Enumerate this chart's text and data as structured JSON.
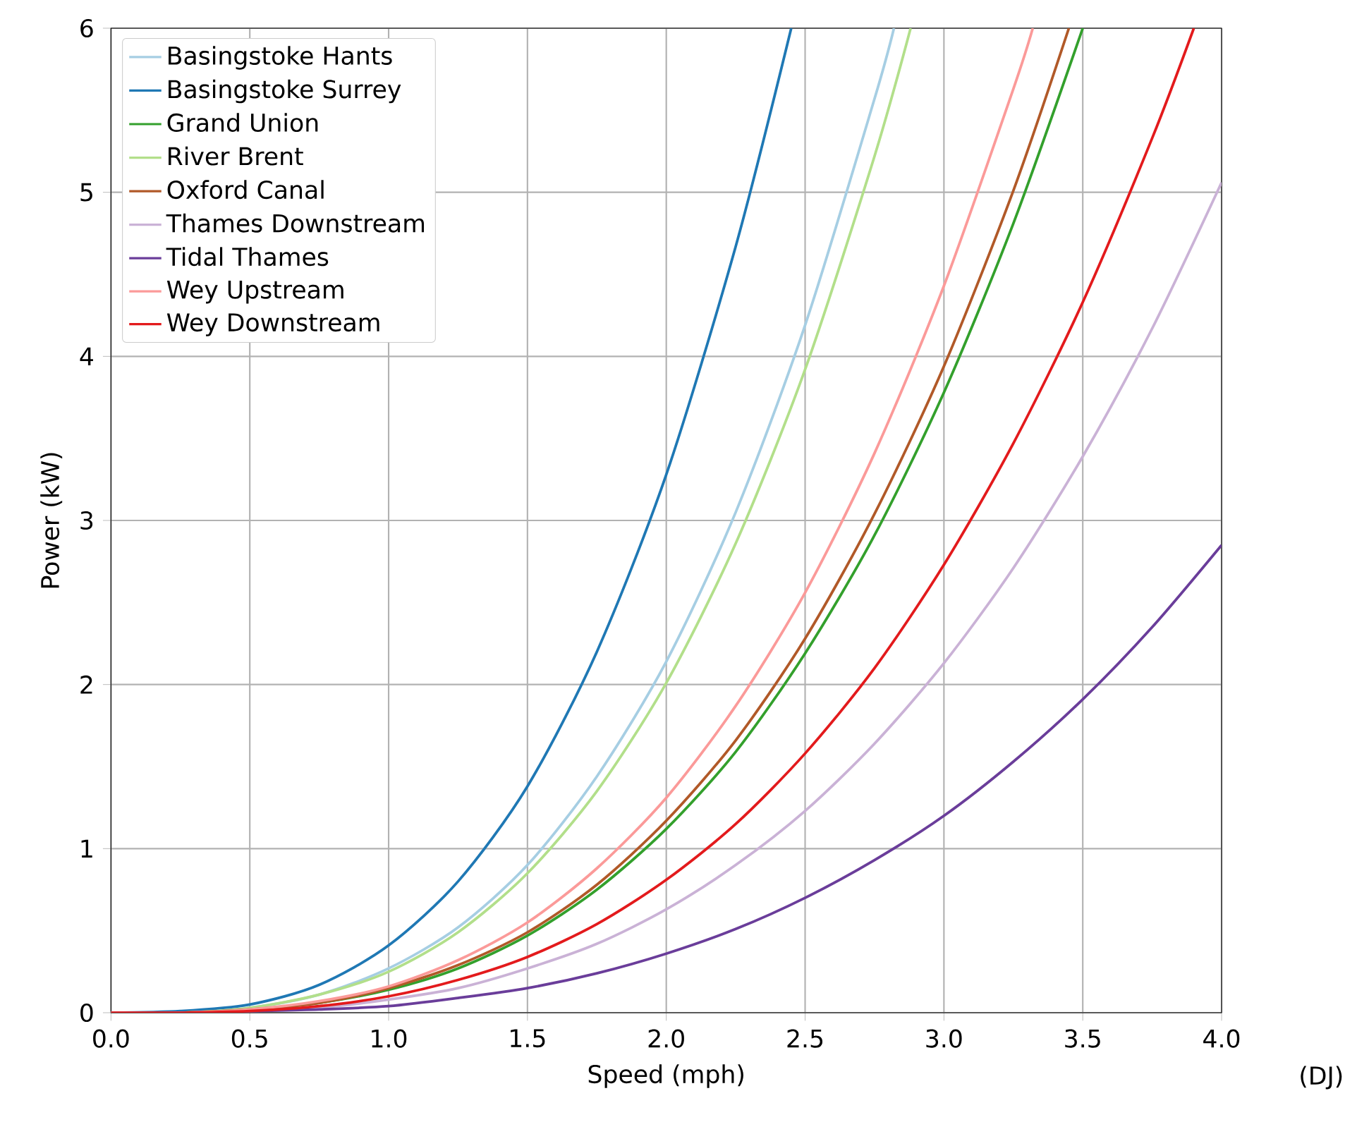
{
  "chart_data": {
    "type": "line",
    "xlabel": "Speed (mph)",
    "ylabel": "Power (kW)",
    "xlim": [
      0,
      4
    ],
    "ylim": [
      0,
      6
    ],
    "xticks": [
      {
        "value": 0,
        "label": "0.0"
      },
      {
        "value": 0.5,
        "label": "0.5"
      },
      {
        "value": 1,
        "label": "1.0"
      },
      {
        "value": 1.5,
        "label": "1.5"
      },
      {
        "value": 2,
        "label": "2.0"
      },
      {
        "value": 2.5,
        "label": "2.5"
      },
      {
        "value": 3,
        "label": "3.0"
      },
      {
        "value": 3.5,
        "label": "3.5"
      },
      {
        "value": 4,
        "label": "4.0"
      }
    ],
    "yticks": [
      0,
      1,
      2,
      3,
      4,
      5,
      6
    ],
    "grid": true,
    "legend": "top left",
    "line_style": "solid",
    "marker": "none",
    "annotations": [
      "(DJ)"
    ],
    "series": [
      {
        "name": "Basingstoke Hants",
        "color": "#a6cee3",
        "x": [
          0,
          0.25,
          0.5,
          0.75,
          1,
          1.25,
          1.5,
          1.75,
          2,
          2.25,
          2.5,
          2.75,
          2.82
        ],
        "values": [
          0,
          0,
          0.03,
          0.11,
          0.27,
          0.52,
          0.9,
          1.44,
          2.14,
          3.05,
          4.19,
          5.57,
          6
        ]
      },
      {
        "name": "Basingstoke Surrey",
        "color": "#1f78b4",
        "x": [
          0,
          0.25,
          0.5,
          0.75,
          1,
          1.25,
          1.5,
          1.75,
          2,
          2.25,
          2.45
        ],
        "values": [
          0,
          0.01,
          0.05,
          0.17,
          0.41,
          0.8,
          1.38,
          2.2,
          3.28,
          4.67,
          6
        ]
      },
      {
        "name": "Grand Union",
        "color": "#33a02c",
        "x": [
          0,
          0.25,
          0.5,
          0.75,
          1,
          1.25,
          1.5,
          1.75,
          2,
          2.25,
          2.5,
          2.75,
          3,
          3.25,
          3.5
        ],
        "values": [
          0,
          0,
          0.02,
          0.06,
          0.14,
          0.27,
          0.47,
          0.75,
          1.12,
          1.59,
          2.19,
          2.91,
          3.78,
          4.81,
          6
        ]
      },
      {
        "name": "River Brent",
        "color": "#b2df8a",
        "x": [
          0,
          0.25,
          0.5,
          0.75,
          1,
          1.25,
          1.5,
          1.75,
          2,
          2.25,
          2.5,
          2.75,
          2.88
        ],
        "values": [
          0,
          0,
          0.03,
          0.11,
          0.25,
          0.49,
          0.85,
          1.35,
          2.01,
          2.86,
          3.92,
          5.22,
          6
        ]
      },
      {
        "name": "Oxford Canal",
        "color": "#b15928",
        "x": [
          0,
          0.25,
          0.5,
          0.75,
          1,
          1.25,
          1.5,
          1.75,
          2,
          2.25,
          2.5,
          2.75,
          3,
          3.25,
          3.45
        ],
        "values": [
          0,
          0,
          0.02,
          0.06,
          0.15,
          0.29,
          0.49,
          0.78,
          1.17,
          1.66,
          2.28,
          3.04,
          3.94,
          5.01,
          6
        ]
      },
      {
        "name": "Thames Downstream",
        "color": "#cab2d6",
        "x": [
          0,
          0.25,
          0.5,
          0.75,
          1,
          1.25,
          1.5,
          1.75,
          2,
          2.25,
          2.5,
          2.75,
          3,
          3.25,
          3.5,
          3.75,
          4
        ],
        "values": [
          0,
          0,
          0.01,
          0.03,
          0.08,
          0.15,
          0.27,
          0.42,
          0.63,
          0.9,
          1.23,
          1.64,
          2.13,
          2.71,
          3.39,
          4.17,
          5.06
        ]
      },
      {
        "name": "Tidal Thames",
        "color": "#6a3d9a",
        "x": [
          0,
          0.25,
          0.5,
          0.75,
          1,
          1.25,
          1.5,
          1.75,
          2,
          2.25,
          2.5,
          2.75,
          3,
          3.25,
          3.5,
          3.75,
          4
        ],
        "values": [
          0,
          0,
          0.01,
          0.02,
          0.04,
          0.09,
          0.15,
          0.24,
          0.36,
          0.51,
          0.7,
          0.93,
          1.2,
          1.53,
          1.91,
          2.35,
          2.85
        ]
      },
      {
        "name": "Wey Upstream",
        "color": "#fb9a99",
        "x": [
          0,
          0.25,
          0.5,
          0.75,
          1,
          1.25,
          1.5,
          1.75,
          2,
          2.25,
          2.5,
          2.75,
          3,
          3.25,
          3.32
        ],
        "values": [
          0,
          0,
          0.02,
          0.07,
          0.16,
          0.32,
          0.55,
          0.88,
          1.31,
          1.87,
          2.56,
          3.41,
          4.43,
          5.63,
          6
        ]
      },
      {
        "name": "Wey Downstream",
        "color": "#e31a1c",
        "x": [
          0,
          0.25,
          0.5,
          0.75,
          1,
          1.25,
          1.5,
          1.75,
          2,
          2.25,
          2.5,
          2.75,
          3,
          3.25,
          3.5,
          3.75,
          3.9
        ],
        "values": [
          0,
          0,
          0.01,
          0.04,
          0.1,
          0.2,
          0.34,
          0.54,
          0.81,
          1.15,
          1.58,
          2.1,
          2.73,
          3.47,
          4.33,
          5.33,
          6
        ]
      }
    ]
  }
}
